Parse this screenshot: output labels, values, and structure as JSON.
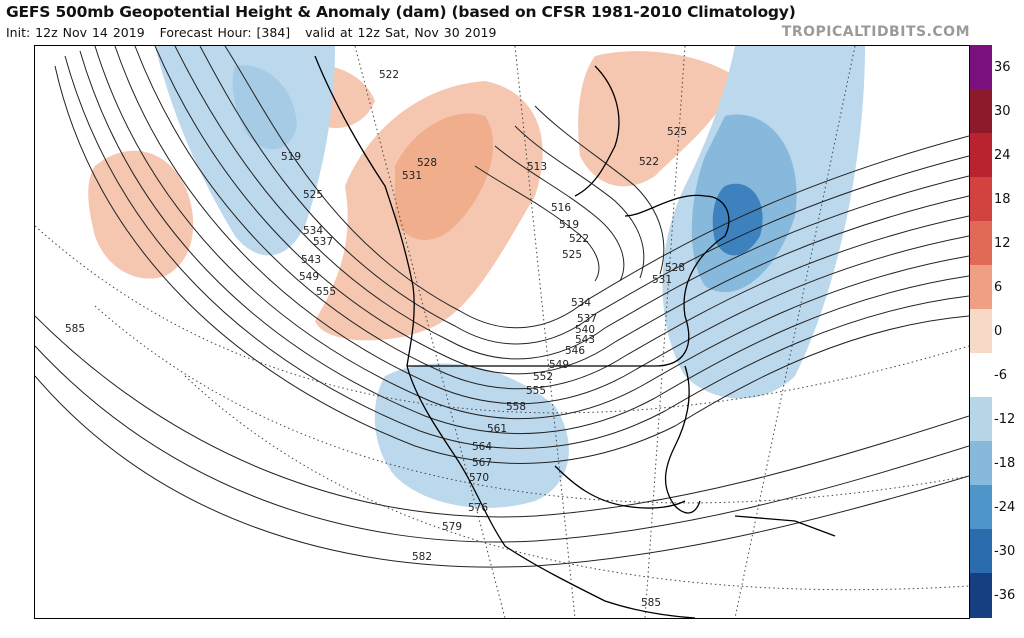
{
  "header": {
    "title": "GEFS 500mb Geopotential Height & Anomaly (dam) (based on CFSR 1981-2010 Climatology)",
    "init": "Init: 12z Nov 14 2019",
    "forecast_hour": "Forecast Hour: [384]",
    "valid": "valid at 12z Sat, Nov 30 2019",
    "brand": "TROPICALTIDBITS.COM"
  },
  "colorbar": {
    "levels": [
      {
        "label": "36",
        "color": "#7a0f7e"
      },
      {
        "label": "30",
        "color": "#8c1a2b"
      },
      {
        "label": "24",
        "color": "#b8232f"
      },
      {
        "label": "18",
        "color": "#d2433f"
      },
      {
        "label": "12",
        "color": "#e06a55"
      },
      {
        "label": "6",
        "color": "#ef9f83"
      },
      {
        "label": "0",
        "color": "#f7d9c8"
      },
      {
        "label": "-6",
        "color": "#ffffff"
      },
      {
        "label": "-12",
        "color": "#b7d6e8"
      },
      {
        "label": "-18",
        "color": "#86b9dc"
      },
      {
        "label": "-24",
        "color": "#4e95c9"
      },
      {
        "label": "-30",
        "color": "#2b6cae"
      },
      {
        "label": "-36",
        "color": "#163f82"
      }
    ],
    "bottom_color": "#0b1f52"
  },
  "map": {
    "height_labels": [
      "519",
      "525",
      "534",
      "537",
      "543",
      "549",
      "555",
      "585",
      "522",
      "528",
      "531",
      "516",
      "519",
      "522",
      "525",
      "513",
      "525",
      "522",
      "528",
      "531",
      "534",
      "537",
      "540",
      "543",
      "546",
      "549",
      "552",
      "555",
      "558",
      "561",
      "564",
      "567",
      "570",
      "576",
      "579",
      "582",
      "585"
    ],
    "colors": {
      "positive": "#f2b89c",
      "negative": "#7fb4d8",
      "negative_strong": "#2f78b8",
      "contour": "#222222",
      "coast": "#000000"
    }
  }
}
